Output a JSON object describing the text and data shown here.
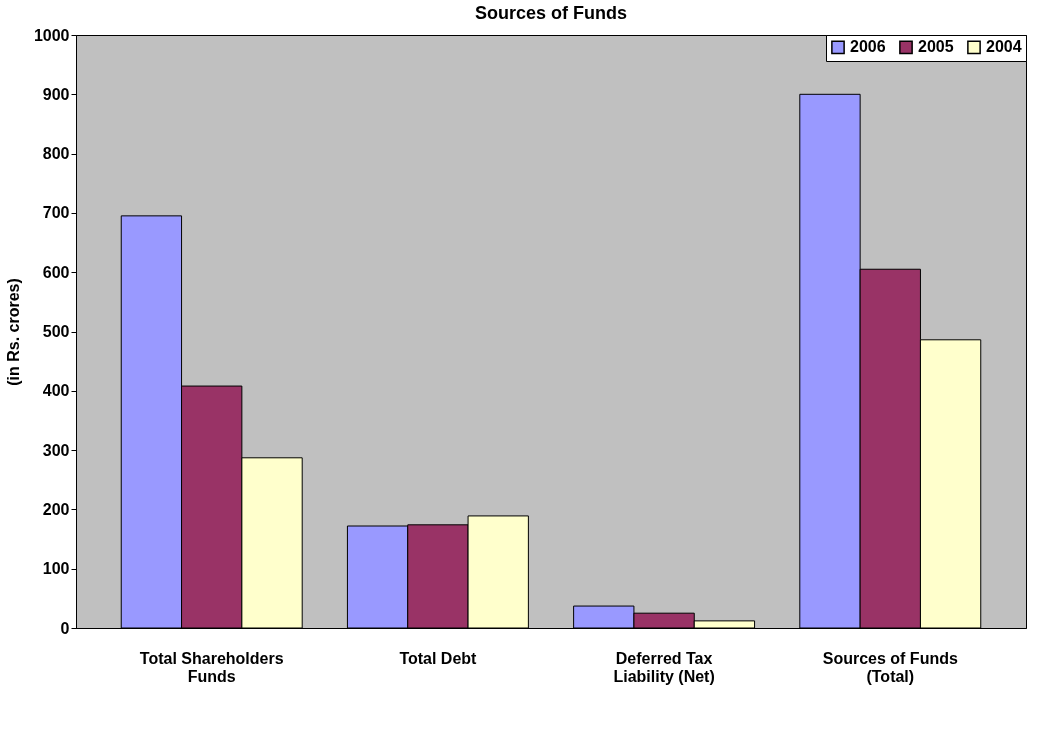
{
  "chart_data": {
    "type": "bar",
    "title": "Sources of Funds",
    "ylabel": "(in Rs. crores)",
    "categories": [
      "Total Shareholders Funds",
      "Total Debt",
      "Deferred Tax Liability (Net)",
      "Sources of Funds (Total)"
    ],
    "series": [
      {
        "name": "2006",
        "color": "#9999ff",
        "values": [
          695,
          172,
          37,
          900
        ]
      },
      {
        "name": "2005",
        "color": "#993366",
        "values": [
          408,
          174,
          25,
          605
        ]
      },
      {
        "name": "2004",
        "color": "#ffffcc",
        "values": [
          287,
          189,
          12,
          486
        ]
      }
    ],
    "ylim": [
      0,
      1000
    ],
    "yticks": [
      0,
      100,
      200,
      300,
      400,
      500,
      600,
      700,
      800,
      900,
      1000
    ],
    "grid": false,
    "legend": "top right"
  }
}
